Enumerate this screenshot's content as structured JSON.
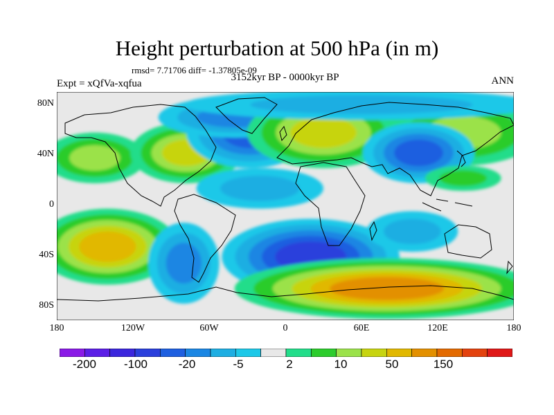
{
  "title": "Height perturbation at 500 hPa (in m)",
  "stats": "rmsd= 7.71706 diff= -1.37805e-09",
  "period": "3152kyr BP - 0000kyr BP",
  "expt": "Expt = xQfVa-xqfua",
  "season": "ANN",
  "lat_labels": [
    "80N",
    "40N",
    "0",
    "40S",
    "80S"
  ],
  "lon_labels": [
    "180",
    "120W",
    "60W",
    "0",
    "60E",
    "120E",
    "180"
  ],
  "colorbar": {
    "labels": [
      "-200",
      "-100",
      "-20",
      "-5",
      "2",
      "10",
      "50",
      "150"
    ],
    "colors": [
      "#8a1ae6",
      "#5b1ee6",
      "#3b26dd",
      "#2a3fdc",
      "#1e5fe0",
      "#1a86e3",
      "#1eaee2",
      "#1dc8e8",
      "#e8e8e8",
      "#22dd8a",
      "#2ccc2c",
      "#9be24a",
      "#c7d410",
      "#e1b800",
      "#e39000",
      "#e36a00",
      "#e3420e",
      "#e01818"
    ]
  },
  "map": {
    "background_color": "#e8e8e8",
    "coastline_color": "#000000",
    "regions": [
      {
        "name": "N Pacific positive",
        "lon": -150,
        "lat": 38,
        "rx": 20,
        "ry": 10,
        "level": 11
      },
      {
        "name": "N America positive",
        "lon": -78,
        "lat": 42,
        "rx": 22,
        "ry": 12,
        "level": 12
      },
      {
        "name": "N Atlantic negative",
        "lon": -28,
        "lat": 58,
        "rx": 25,
        "ry": 14,
        "level": 4
      },
      {
        "name": "Greenland negative",
        "lon": -40,
        "lat": 70,
        "rx": 30,
        "ry": 8,
        "level": 5
      },
      {
        "name": "Europe positive",
        "lon": 30,
        "lat": 58,
        "rx": 30,
        "ry": 14,
        "level": 12
      },
      {
        "name": "Siberia positive",
        "lon": 140,
        "lat": 58,
        "rx": 30,
        "ry": 13,
        "level": 11
      },
      {
        "name": "C Asia negative",
        "lon": 105,
        "lat": 42,
        "rx": 22,
        "ry": 12,
        "level": 4
      },
      {
        "name": "Arctic negative",
        "lon": 60,
        "lat": 80,
        "rx": 70,
        "ry": 6,
        "level": 6
      },
      {
        "name": "Tropical Atlantic negative",
        "lon": -20,
        "lat": 14,
        "rx": 25,
        "ry": 8,
        "level": 6
      },
      {
        "name": "S Pacific positive",
        "lon": -140,
        "lat": -32,
        "rx": 28,
        "ry": 15,
        "level": 13
      },
      {
        "name": "SE Pacific negative",
        "lon": -80,
        "lat": -45,
        "rx": 14,
        "ry": 16,
        "level": 5
      },
      {
        "name": "S Atlantic negative",
        "lon": 20,
        "lat": -40,
        "rx": 35,
        "ry": 15,
        "level": 3
      },
      {
        "name": "Southern Ocean positive",
        "lon": 80,
        "lat": -65,
        "rx": 60,
        "ry": 12,
        "level": 14
      },
      {
        "name": "Indian Ocean negative",
        "lon": 100,
        "lat": -20,
        "rx": 18,
        "ry": 8,
        "level": 6
      },
      {
        "name": "W Pacific positive",
        "lon": 140,
        "lat": 22,
        "rx": 15,
        "ry": 5,
        "level": 10
      }
    ]
  }
}
